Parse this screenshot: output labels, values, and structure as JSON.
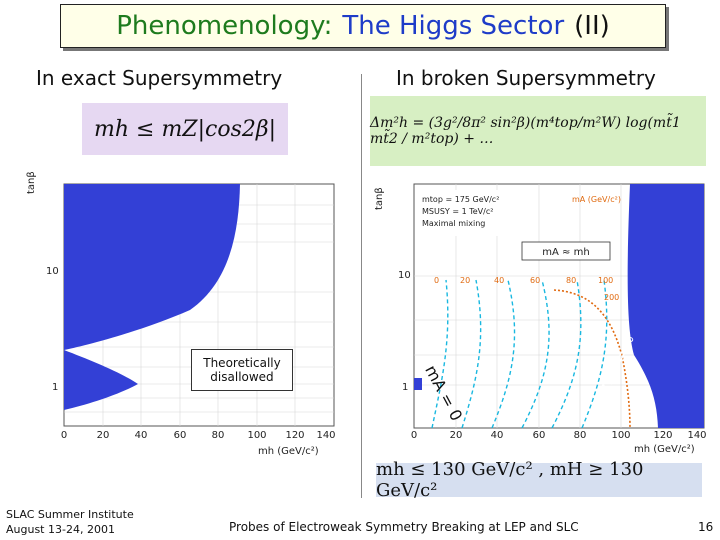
{
  "header": {
    "title_part1": "Phenomenology:",
    "title_part2": "The Higgs Sector",
    "title_part3": "(II)"
  },
  "left": {
    "subheading": "In exact Supersymmetry",
    "formula": "mh ≤ mZ|cos2β|",
    "plot": {
      "y_axis_label": "tanβ",
      "x_axis_label": "mh (GeV/c²)",
      "y_ticks": [
        "10",
        "1"
      ],
      "x_ticks": [
        "0",
        "20",
        "40",
        "60",
        "80",
        "100",
        "120",
        "140"
      ],
      "annotation_line1": "Theoretically",
      "annotation_line2": "disallowed"
    }
  },
  "right": {
    "subheading": "In broken Supersymmetry",
    "formula": "Δm²h = (3g²/8π² sin²β)(m⁴top/m²W) log(mt̃1 mt̃2 / m²top) + …",
    "plot": {
      "y_axis_label": "tanβ",
      "x_axis_label": "mh (GeV/c²)",
      "y_ticks": [
        "10",
        "1"
      ],
      "x_ticks": [
        "0",
        "20",
        "40",
        "60",
        "80",
        "100",
        "120",
        "140"
      ],
      "legend_line1": "mtop = 175 GeV/c²",
      "legend_line2": "MSUSY = 1 TeV/c²",
      "legend_line3": "Maximal mixing",
      "legend_right": "mA (GeV/c²)",
      "ma_labels": [
        "0",
        "20",
        "40",
        "60",
        "80",
        "100",
        "200"
      ],
      "ma_approx_label": "mA ≈ mh",
      "ma_zero_label": "mA = 0",
      "ma_inf_label": "mA = ∞"
    },
    "bottom_formula": "mh ≤ 130 GeV/c² ,  mH ≥ 130 GeV/c²"
  },
  "footer": {
    "org_line1": "SLAC Summer Institute",
    "org_line2": "August 13-24, 2001",
    "center": "Probes of Electroweak Symmetry Breaking at LEP and SLC",
    "page_number": "16"
  },
  "colors": {
    "title_green": "#1e7b1e",
    "title_blue": "#1e3cc8",
    "excluded_blue": "#3340d6",
    "contour_cyan": "#19b8e0",
    "contour_orange": "#e06a10"
  }
}
